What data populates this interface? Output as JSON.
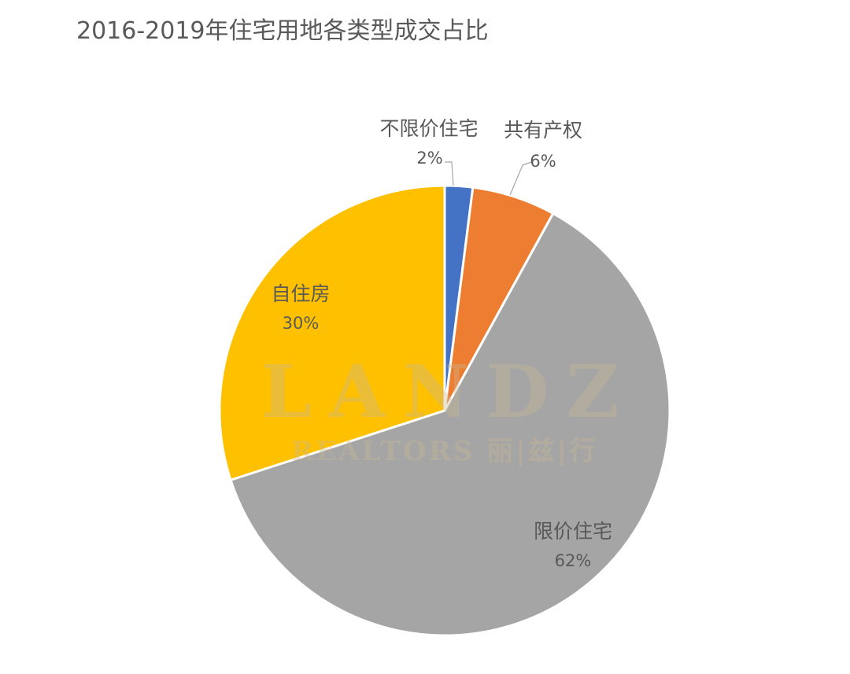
{
  "title": "2016-2019年住宅用地各类型成交占比",
  "watermark": {
    "main": "LANDZ",
    "sub": "REALTORS 丽|兹|行"
  },
  "chart_data": {
    "type": "pie",
    "title": "2016-2019年住宅用地各类型成交占比",
    "start_angle_deg": 0,
    "direction": "clockwise",
    "slices": [
      {
        "label": "不限价住宅",
        "value": 2,
        "value_label": "2%",
        "color": "#4472C4"
      },
      {
        "label": "共有产权",
        "value": 6,
        "value_label": "6%",
        "color": "#ED7D31"
      },
      {
        "label": "限价住宅",
        "value": 62,
        "value_label": "62%",
        "color": "#A5A5A5"
      },
      {
        "label": "自住房",
        "value": 30,
        "value_label": "30%",
        "color": "#FFC000"
      }
    ]
  }
}
